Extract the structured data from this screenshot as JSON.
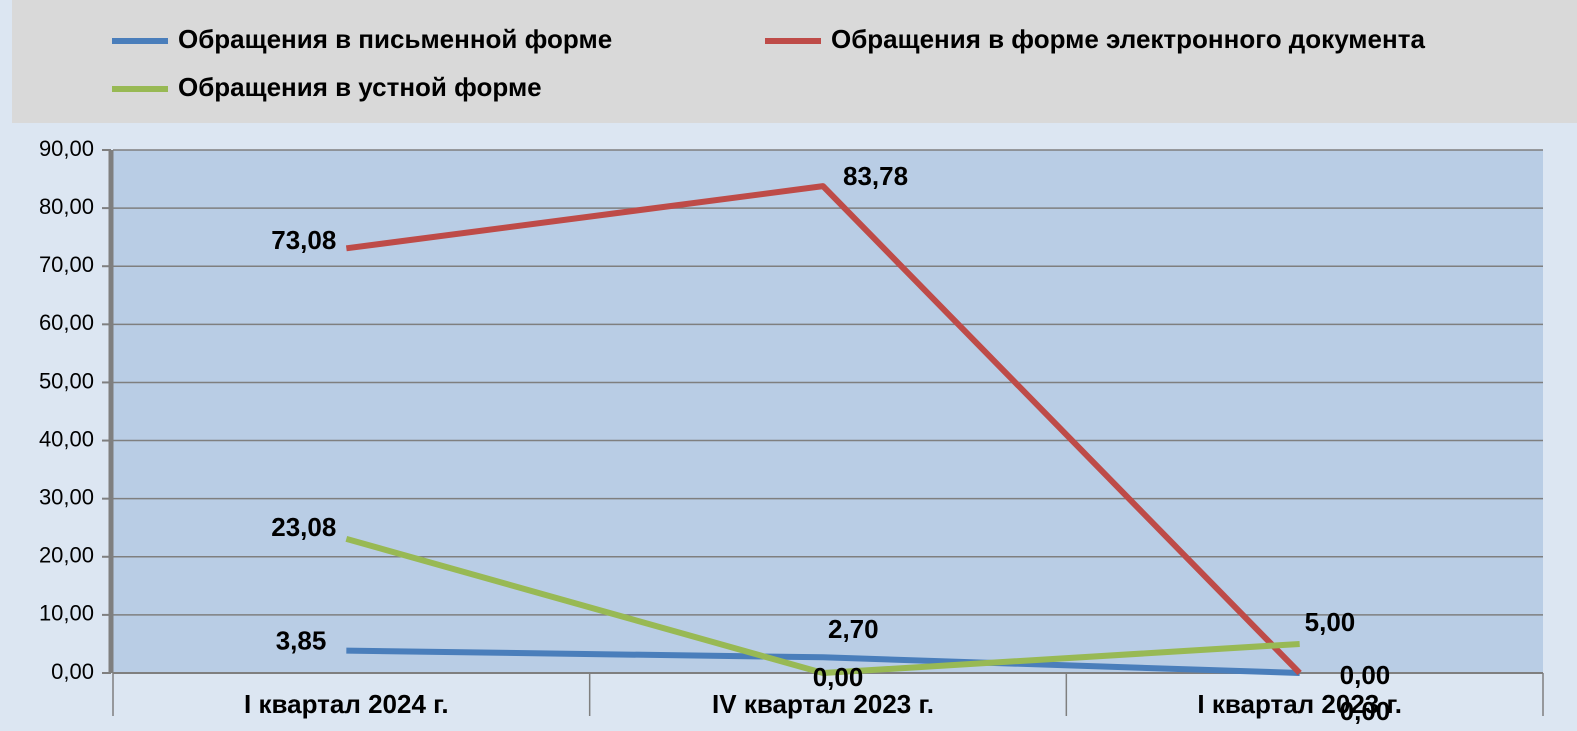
{
  "chart_data": {
    "type": "line",
    "categories": [
      "I квартал 2024 г.",
      "IV квартал 2023 г.",
      "I квартал 2023 г."
    ],
    "series": [
      {
        "name": "Обращения в письменной форме",
        "color": "#4a7ebb",
        "values": [
          3.85,
          2.7,
          0.0
        ],
        "value_labels": [
          "3,85",
          "2,70",
          "0,00"
        ]
      },
      {
        "name": "Обращения в форме электронного документа",
        "color": "#be4b48",
        "values": [
          73.08,
          83.78,
          0.0
        ],
        "value_labels": [
          "73,08",
          "83,78",
          "0,00"
        ]
      },
      {
        "name": "Обращения в устной форме",
        "color": "#98b954",
        "values": [
          23.08,
          0.0,
          5.0
        ],
        "value_labels": [
          "23,08",
          "0,00",
          "5,00"
        ]
      }
    ],
    "ylim": [
      0,
      90
    ],
    "yticks": [
      {
        "value": 0,
        "label": "0,00"
      },
      {
        "value": 10,
        "label": "10,00"
      },
      {
        "value": 20,
        "label": "20,00"
      },
      {
        "value": 30,
        "label": "30,00"
      },
      {
        "value": 40,
        "label": "40,00"
      },
      {
        "value": 50,
        "label": "50,00"
      },
      {
        "value": 60,
        "label": "60,00"
      },
      {
        "value": 70,
        "label": "70,00"
      },
      {
        "value": 80,
        "label": "80,00"
      },
      {
        "value": 90,
        "label": "90,00"
      }
    ],
    "grid": true,
    "legend": "top"
  }
}
